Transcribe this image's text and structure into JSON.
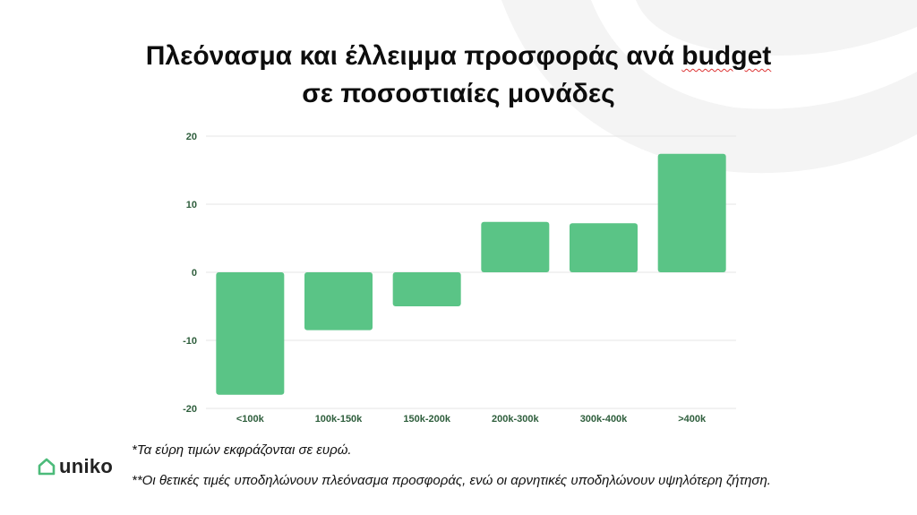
{
  "slide": {
    "title_part1": "Πλεόνασμα και έλλειμμα προσφοράς ανά ",
    "title_part2": "budget",
    "title_line2": "σε ποσοστιαίες μονάδες",
    "footnote1": "*Τα εύρη τιμών εκφράζονται σε ευρώ.",
    "footnote2": "**Οι θετικές τιμές υποδηλώνουν πλεόνασμα προσφοράς, ενώ οι αρνητικές υποδηλώνουν υψηλότερη ζήτηση.",
    "logo_text": "uniko",
    "logo_icon": "house-icon",
    "colors": {
      "bar": "#5ac486",
      "axis_text": "#2e5e3c",
      "grid": "#e6e6e6",
      "logo": "#4cbb7a"
    }
  },
  "chart_data": {
    "type": "bar",
    "categories": [
      "<100k",
      "100k-150k",
      "150k-200k",
      "200k-300k",
      "300k-400k",
      ">400k"
    ],
    "values": [
      -18,
      -8.5,
      -5,
      7.4,
      7.2,
      17.4
    ],
    "ylim": [
      -20,
      20
    ],
    "yticks": [
      20,
      10,
      0,
      -10,
      -20
    ],
    "grid": true,
    "title": "",
    "xlabel": "",
    "ylabel": ""
  }
}
